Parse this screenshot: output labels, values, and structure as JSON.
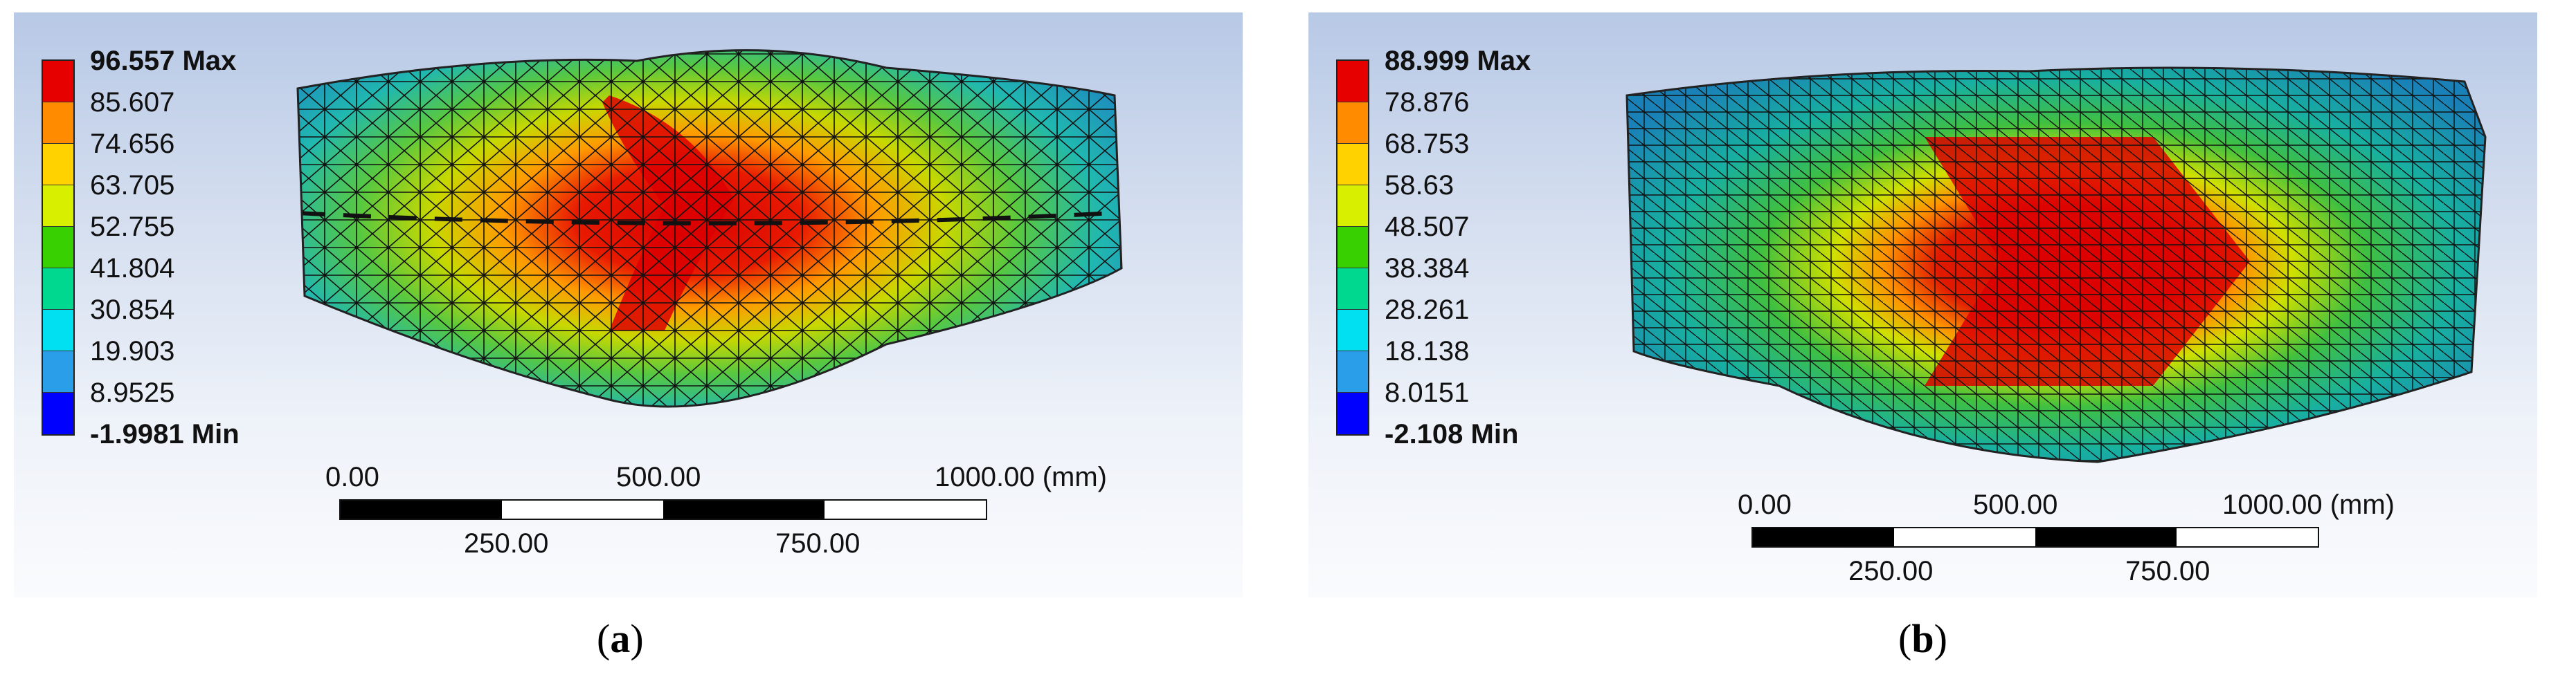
{
  "panels": [
    {
      "caption_open": "(",
      "caption_letter": "a",
      "caption_close": ")",
      "legend": {
        "max_label": "96.557 Max",
        "min_label": "-1.9981 Min",
        "levels": [
          "85.607",
          "74.656",
          "63.705",
          "52.755",
          "41.804",
          "30.854",
          "19.903",
          "8.9525"
        ],
        "colors": [
          "#e60000",
          "#ff8c00",
          "#ffd200",
          "#d8f000",
          "#38d000",
          "#00d890",
          "#00e0f0",
          "#2a9ee8",
          "#0000ff"
        ]
      },
      "scale_bar": {
        "ticks_top": [
          "0.00",
          "500.00",
          "1000.00 (mm)"
        ],
        "ticks_bottom": [
          "250.00",
          "750.00"
        ]
      }
    },
    {
      "caption_open": "(",
      "caption_letter": "b",
      "caption_close": ")",
      "legend": {
        "max_label": "88.999 Max",
        "min_label": "-2.108 Min",
        "levels": [
          "78.876",
          "68.753",
          "58.63",
          "48.507",
          "38.384",
          "28.261",
          "18.138",
          "8.0151"
        ],
        "colors": [
          "#e60000",
          "#ff8c00",
          "#ffd200",
          "#d8f000",
          "#38d000",
          "#00d890",
          "#00e0f0",
          "#2a9ee8",
          "#0000ff"
        ]
      },
      "scale_bar": {
        "ticks_top": [
          "0.00",
          "500.00",
          "1000.00 (mm)"
        ],
        "ticks_bottom": [
          "250.00",
          "750.00"
        ]
      }
    }
  ]
}
